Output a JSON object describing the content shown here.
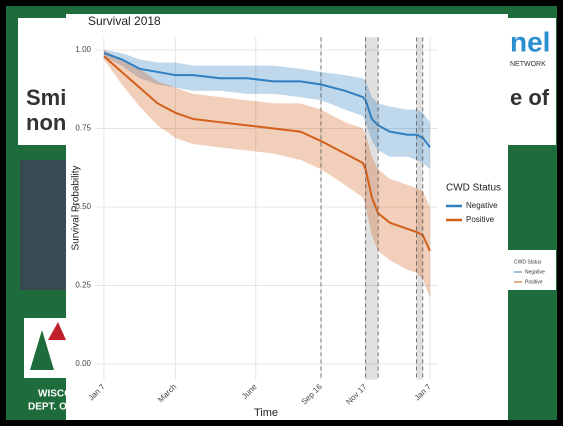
{
  "background_slide": {
    "left_text": [
      "Smi",
      "non"
    ],
    "right_text": "e of",
    "logo_text": "nel",
    "logo_subtext": "NETWORK",
    "agency_text": [
      "WISCO",
      "DEPT. O"
    ],
    "small_legend": {
      "title": "CWD Status",
      "entries": [
        "Negative",
        "Positive"
      ]
    }
  },
  "chart_data": {
    "type": "line",
    "title": "Survival 2018",
    "x_label": "Time",
    "y_label": "Survival Probability",
    "x": [
      0,
      20,
      40,
      60,
      80,
      100,
      130,
      160,
      190,
      220,
      243,
      270,
      290,
      293,
      300,
      307,
      320,
      340,
      350,
      357,
      365
    ],
    "series": [
      {
        "name": "Negative",
        "color": "#2f7fc1",
        "values": [
          0.99,
          0.97,
          0.94,
          0.93,
          0.92,
          0.92,
          0.91,
          0.91,
          0.9,
          0.9,
          0.89,
          0.87,
          0.85,
          0.84,
          0.78,
          0.76,
          0.74,
          0.73,
          0.73,
          0.72,
          0.69
        ],
        "lower": [
          0.98,
          0.95,
          0.91,
          0.89,
          0.88,
          0.87,
          0.87,
          0.86,
          0.86,
          0.85,
          0.84,
          0.81,
          0.79,
          0.77,
          0.71,
          0.68,
          0.66,
          0.66,
          0.65,
          0.64,
          0.62
        ],
        "upper": [
          1.0,
          0.99,
          0.97,
          0.96,
          0.96,
          0.95,
          0.95,
          0.95,
          0.95,
          0.94,
          0.93,
          0.92,
          0.91,
          0.9,
          0.85,
          0.83,
          0.82,
          0.81,
          0.81,
          0.8,
          0.77
        ]
      },
      {
        "name": "Positive",
        "color": "#d2601a",
        "values": [
          0.98,
          0.93,
          0.88,
          0.83,
          0.8,
          0.78,
          0.77,
          0.76,
          0.75,
          0.74,
          0.71,
          0.67,
          0.64,
          0.62,
          0.53,
          0.48,
          0.45,
          0.43,
          0.42,
          0.41,
          0.36
        ],
        "lower": [
          0.97,
          0.89,
          0.82,
          0.76,
          0.72,
          0.7,
          0.69,
          0.68,
          0.67,
          0.65,
          0.62,
          0.57,
          0.53,
          0.5,
          0.41,
          0.36,
          0.33,
          0.3,
          0.29,
          0.27,
          0.21
        ],
        "upper": [
          1.0,
          0.97,
          0.94,
          0.9,
          0.88,
          0.86,
          0.85,
          0.84,
          0.83,
          0.83,
          0.81,
          0.77,
          0.75,
          0.73,
          0.66,
          0.62,
          0.59,
          0.57,
          0.56,
          0.55,
          0.5
        ]
      }
    ],
    "legend_title": "CWD Status",
    "legend_position": "right",
    "xlim": [
      -10,
      374
    ],
    "ylim": [
      -0.05,
      1.04
    ],
    "xticks": [
      {
        "value": 0,
        "label": "Jan 7"
      },
      {
        "value": 80,
        "label": "March"
      },
      {
        "value": 170,
        "label": "June"
      },
      {
        "value": 243,
        "label": "Sep 16"
      },
      {
        "value": 293,
        "label": "Nov 17"
      },
      {
        "value": 365,
        "label": "Jan 7"
      }
    ],
    "yticks": [
      {
        "value": 0,
        "label": "0.00"
      },
      {
        "value": 0.25,
        "label": "0.25"
      },
      {
        "value": 0.5,
        "label": "0.50"
      },
      {
        "value": 0.75,
        "label": "0.75"
      },
      {
        "value": 1,
        "label": "1.00"
      }
    ],
    "reference_lines": [
      243,
      293,
      307,
      350,
      357
    ],
    "shaded_regions": [
      [
        293,
        307
      ],
      [
        350,
        357
      ]
    ],
    "grid": true
  }
}
